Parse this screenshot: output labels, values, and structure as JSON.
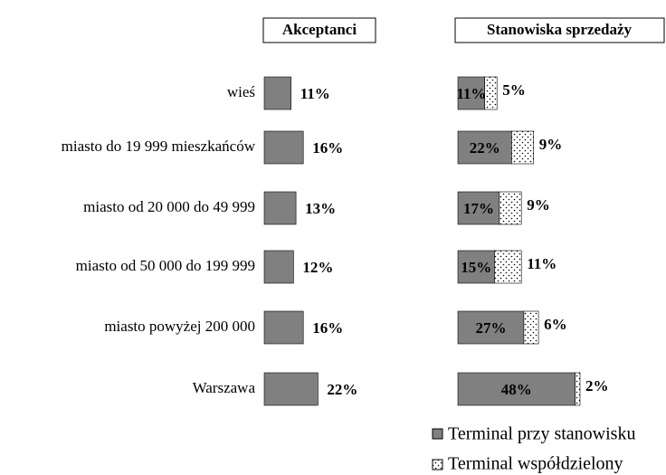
{
  "chart_data": [
    {
      "type": "bar",
      "title": "Akceptanci",
      "categories": [
        "wieś",
        "miasto do 19 999 mieszkańców",
        "miasto od 20 000 do 49 999",
        "miasto od 50 000 do 199 999",
        "miasto powyżej 200 000",
        "Warszawa"
      ],
      "values": [
        11,
        16,
        13,
        12,
        16,
        22
      ],
      "value_labels": [
        "11%",
        "16%",
        "13%",
        "12%",
        "16%",
        "22%"
      ],
      "color": "#808080"
    },
    {
      "type": "stacked_bar",
      "title": "Stanowiska sprzedaży",
      "series": [
        {
          "name": "Terminal przy stanowisku",
          "color": "#808080",
          "values": [
            11,
            22,
            17,
            15,
            27,
            48
          ],
          "value_labels": [
            "11%",
            "22%",
            "17%",
            "15%",
            "27%",
            "48%"
          ]
        },
        {
          "name": "Terminal współdzielony",
          "color": "dotted",
          "values": [
            5,
            9,
            9,
            11,
            6,
            2
          ],
          "value_labels": [
            "5%",
            "9%",
            "9%",
            "11%",
            "6%",
            "2%"
          ]
        }
      ]
    }
  ]
}
